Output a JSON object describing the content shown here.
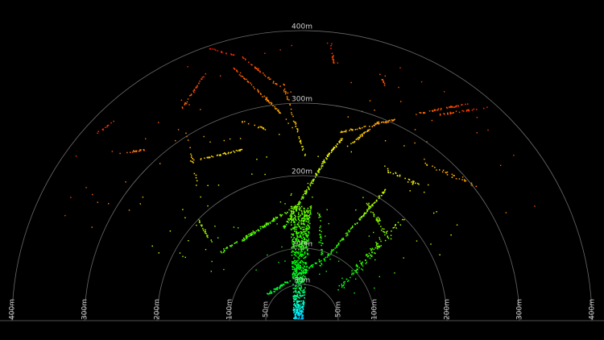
{
  "rlim": [
    0,
    400
  ],
  "rings": [
    {
      "value": 50,
      "label": "50m"
    },
    {
      "value": 100,
      "label": "100m"
    },
    {
      "value": 200,
      "label": "200m"
    },
    {
      "value": 300,
      "label": "300m"
    },
    {
      "value": 400,
      "label": "400m"
    }
  ]
}
